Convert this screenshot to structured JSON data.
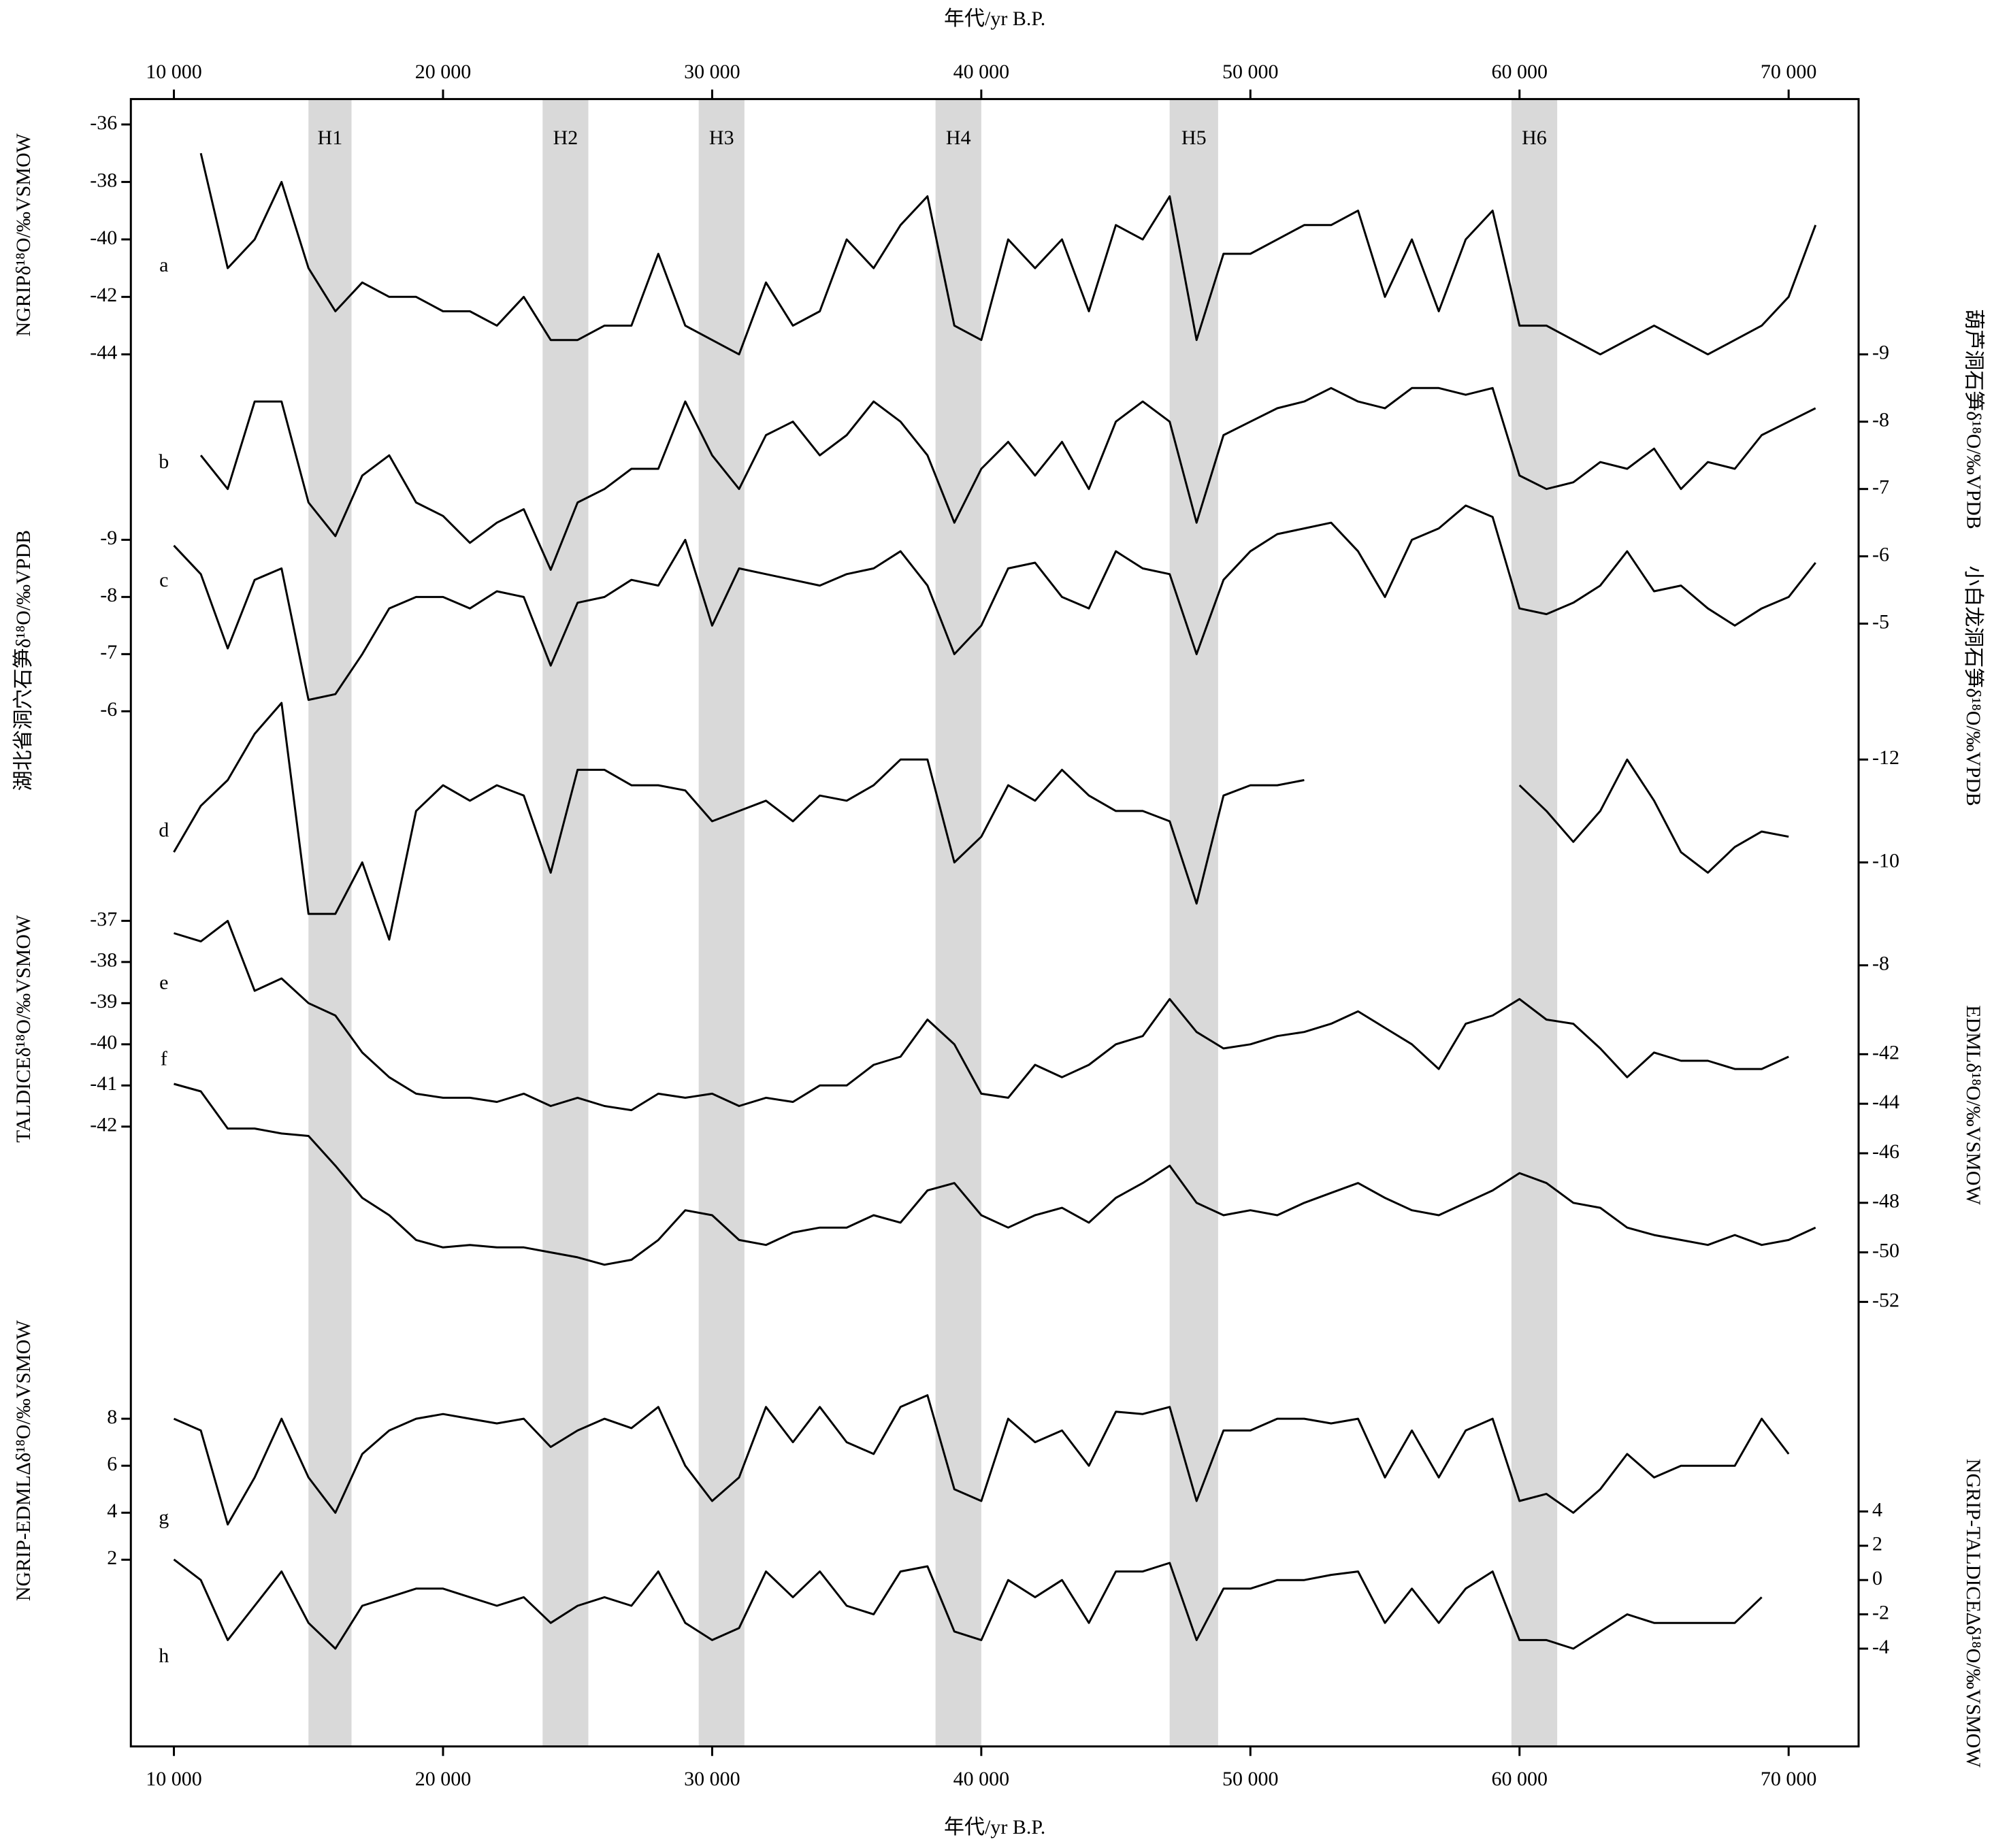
{
  "chart_data": {
    "type": "line",
    "x_label": "年代/yr B.P.",
    "xlim": [
      8400,
      72600
    ],
    "xticks": [
      {
        "value": 10000,
        "label": "10 000"
      },
      {
        "value": 20000,
        "label": "20 000"
      },
      {
        "value": 30000,
        "label": "30 000"
      },
      {
        "value": 40000,
        "label": "40 000"
      },
      {
        "value": 50000,
        "label": "50 000"
      },
      {
        "value": 60000,
        "label": "60 000"
      },
      {
        "value": 70000,
        "label": "70 000"
      }
    ],
    "x": [
      10000,
      11000,
      12000,
      13000,
      14000,
      15000,
      16000,
      17000,
      18000,
      19000,
      20000,
      21000,
      22000,
      23000,
      24000,
      25000,
      26000,
      27000,
      28000,
      29000,
      30000,
      31000,
      32000,
      33000,
      34000,
      35000,
      36000,
      37000,
      38000,
      39000,
      40000,
      41000,
      42000,
      43000,
      44000,
      45000,
      46000,
      47000,
      48000,
      49000,
      50000,
      51000,
      52000,
      53000,
      54000,
      55000,
      56000,
      57000,
      58000,
      59000,
      60000,
      61000,
      62000,
      63000,
      64000,
      65000,
      66000,
      67000,
      68000,
      69000,
      70000,
      71000
    ],
    "events": [
      {
        "label": "H1",
        "start": 15000,
        "end": 16600
      },
      {
        "label": "H2",
        "start": 23700,
        "end": 25400
      },
      {
        "label": "H3",
        "start": 29500,
        "end": 31200
      },
      {
        "label": "H4",
        "start": 38300,
        "end": 40000
      },
      {
        "label": "H5",
        "start": 47000,
        "end": 48800
      },
      {
        "label": "H6",
        "start": 59700,
        "end": 61400
      }
    ],
    "event_color": "#d9d9d9",
    "panels": [
      {
        "label": "a",
        "axis_label": "NGRIPδ¹⁸O/‰VSMOW",
        "side": "left",
        "color": "#000000",
        "ylim": [
          -44,
          -36
        ],
        "yticks": [
          -36,
          -38,
          -40,
          -42,
          -44
        ],
        "values": [
          null,
          -37,
          -41,
          -40,
          -38,
          -41,
          -42.5,
          -41.5,
          -42,
          -42,
          -42.5,
          -42.5,
          -43,
          -42,
          -43.5,
          -43.5,
          -43,
          -43,
          -40.5,
          -43,
          -43.5,
          -44,
          -41.5,
          -43,
          -42.5,
          -40,
          -41,
          -39.5,
          -38.5,
          -43,
          -43.5,
          -40,
          -41,
          -40,
          -42.5,
          -39.5,
          -40,
          -38.5,
          -43.5,
          -40.5,
          -40.5,
          -40,
          -39.5,
          -39.5,
          -39,
          -42,
          -40,
          -42.5,
          -40,
          -39,
          -43,
          -43,
          -43.5,
          -44,
          -43.5,
          -43,
          -43.5,
          -44,
          -43.5,
          -43,
          -42,
          -39.5
        ]
      },
      {
        "label": "b",
        "axis_label": "葫芦洞石笋δ¹⁸O/‰VPDB",
        "side": "right",
        "color": "#000000",
        "ylim": [
          -5,
          -9
        ],
        "yticks": [
          -9,
          -8,
          -7,
          -6,
          -5
        ],
        "values": [
          null,
          -7.5,
          -7.0,
          -8.3,
          -8.3,
          -6.8,
          -6.3,
          -7.2,
          -7.5,
          -6.8,
          -6.6,
          -6.2,
          -6.5,
          -6.7,
          -5.8,
          -6.8,
          -7.0,
          -7.3,
          -7.3,
          -8.3,
          -7.5,
          -7.0,
          -7.8,
          -8.0,
          -7.5,
          -7.8,
          -8.3,
          -8.0,
          -7.5,
          -6.5,
          -7.3,
          -7.7,
          -7.2,
          -7.7,
          -7.0,
          -8.0,
          -8.3,
          -8.0,
          -6.5,
          -7.8,
          -8.0,
          -8.2,
          -8.3,
          -8.5,
          -8.3,
          -8.2,
          -8.5,
          -8.5,
          -8.4,
          -8.5,
          -7.2,
          -7.0,
          -7.1,
          -7.4,
          -7.3,
          -7.6,
          -7.0,
          -7.4,
          -7.3,
          -7.8,
          -8.0,
          -8.2
        ]
      },
      {
        "label": "c",
        "axis_label": "湖北省洞穴石笋δ¹⁸O/‰VPDB",
        "side": "left",
        "color": "#000000",
        "ylim": [
          -6,
          -9
        ],
        "yticks": [
          -9,
          -8,
          -7,
          -6
        ],
        "values": [
          -8.9,
          -8.4,
          -7.1,
          -8.3,
          -8.5,
          -6.2,
          -6.3,
          -7.0,
          -7.8,
          -8.0,
          -8.0,
          -7.8,
          -8.1,
          -8.0,
          -6.8,
          -7.9,
          -8.0,
          -8.3,
          -8.2,
          -9.0,
          -7.5,
          -8.5,
          -8.4,
          -8.3,
          -8.2,
          -8.4,
          -8.5,
          -8.8,
          -8.2,
          -7.0,
          -7.5,
          -8.5,
          -8.6,
          -8.0,
          -7.8,
          -8.8,
          -8.5,
          -8.4,
          -7.0,
          -8.3,
          -8.8,
          -9.1,
          -9.2,
          -9.3,
          -8.8,
          -8.0,
          -9.0,
          -9.2,
          -9.6,
          -9.4,
          -7.8,
          -7.7,
          -7.9,
          -8.2,
          -8.8,
          -8.1,
          -8.2,
          -7.8,
          -7.5,
          -7.8,
          -8.0,
          -8.6
        ]
      },
      {
        "label": "d",
        "axis_label": "小白龙洞石笋δ¹⁸O/‰VPDB",
        "side": "right",
        "color": "#000000",
        "ylim": [
          -8,
          -12
        ],
        "yticks": [
          -12,
          -10,
          -8
        ],
        "values": [
          -10.2,
          -11.1,
          -11.6,
          -12.5,
          -13.1,
          -9.0,
          -9.0,
          -10.0,
          -8.5,
          -11.0,
          -11.5,
          -11.2,
          -11.5,
          -11.3,
          -9.8,
          -11.8,
          -11.8,
          -11.5,
          -11.5,
          -11.4,
          -10.8,
          -11.0,
          -11.2,
          -10.8,
          -11.3,
          -11.2,
          -11.5,
          -12.0,
          -12.0,
          -10.0,
          -10.5,
          -11.5,
          -11.2,
          -11.8,
          -11.3,
          -11.0,
          -11.0,
          -10.8,
          -9.2,
          -11.3,
          -11.5,
          -11.5,
          -11.6,
          null,
          null,
          null,
          null,
          null,
          null,
          null,
          -11.5,
          -11.0,
          -10.4,
          -11.0,
          -12.0,
          -11.2,
          -10.2,
          -9.8,
          -10.3,
          -10.6,
          -10.5,
          null
        ]
      },
      {
        "label": "e",
        "axis_label": "TALDICEδ¹⁸O/‰VSMOW",
        "side": "left",
        "color": "#000000",
        "ylim": [
          -42,
          -37
        ],
        "yticks": [
          -37,
          -38,
          -39,
          -40,
          -41,
          -42
        ],
        "values": [
          -37.3,
          -37.5,
          -37.0,
          -38.7,
          -38.4,
          -39.0,
          -39.3,
          -40.2,
          -40.8,
          -41.2,
          -41.3,
          -41.3,
          -41.4,
          -41.2,
          -41.5,
          -41.3,
          -41.5,
          -41.6,
          -41.2,
          -41.3,
          -41.2,
          -41.5,
          -41.3,
          -41.4,
          -41.0,
          -41.0,
          -40.5,
          -40.3,
          -39.4,
          -40.0,
          -41.2,
          -41.3,
          -40.5,
          -40.8,
          -40.5,
          -40.0,
          -39.8,
          -38.9,
          -39.7,
          -40.1,
          -40.0,
          -39.8,
          -39.7,
          -39.5,
          -39.2,
          -39.6,
          -40.0,
          -40.6,
          -39.5,
          -39.3,
          -38.9,
          -39.4,
          -39.5,
          -40.1,
          -40.8,
          -40.2,
          -40.4,
          -40.4,
          -40.6,
          -40.6,
          -40.3,
          null
        ]
      },
      {
        "label": "f",
        "axis_label": "EDMLδ¹⁸O/‰VSMOW",
        "side": "right",
        "color": "#000000",
        "ylim": [
          -52,
          -42
        ],
        "yticks": [
          -42,
          -44,
          -46,
          -48,
          -50,
          -52
        ],
        "values": [
          -43.2,
          -43.5,
          -45.0,
          -45.0,
          -45.2,
          -45.3,
          -46.5,
          -47.8,
          -48.5,
          -49.5,
          -49.8,
          -49.7,
          -49.8,
          -49.8,
          -50.0,
          -50.2,
          -50.5,
          -50.3,
          -49.5,
          -48.3,
          -48.5,
          -49.5,
          -49.7,
          -49.2,
          -49.0,
          -49.0,
          -48.5,
          -48.8,
          -47.5,
          -47.2,
          -48.5,
          -49.0,
          -48.5,
          -48.2,
          -48.8,
          -47.8,
          -47.2,
          -46.5,
          -48.0,
          -48.5,
          -48.3,
          -48.5,
          -48.0,
          -47.6,
          -47.2,
          -47.8,
          -48.3,
          -48.5,
          -48.0,
          -47.5,
          -46.8,
          -47.2,
          -48.0,
          -48.2,
          -49.0,
          -49.3,
          -49.5,
          -49.7,
          -49.3,
          -49.7,
          -49.5,
          -49.0
        ]
      },
      {
        "label": "g",
        "axis_label": "NGRIP-EDMLΔδ¹⁸O/‰VSMOW",
        "side": "left",
        "color": "#000000",
        "ylim": [
          2,
          8
        ],
        "yticks": [
          8,
          6,
          4,
          2
        ],
        "values": [
          8.0,
          7.5,
          3.5,
          5.5,
          8.0,
          5.5,
          4.0,
          6.5,
          7.5,
          8.0,
          8.2,
          8.0,
          7.8,
          8.0,
          6.8,
          7.5,
          8.0,
          7.6,
          8.5,
          6.0,
          4.5,
          5.5,
          8.5,
          7.0,
          8.5,
          7.0,
          6.5,
          8.5,
          9.0,
          5.0,
          4.5,
          8.0,
          7.0,
          7.5,
          6.0,
          8.3,
          8.2,
          8.5,
          4.5,
          7.5,
          7.5,
          8.0,
          8.0,
          7.8,
          8.0,
          5.5,
          7.5,
          5.5,
          7.5,
          8.0,
          4.5,
          4.8,
          4.0,
          5.0,
          6.5,
          5.5,
          6.0,
          6.0,
          6.0,
          8.0,
          6.5,
          null
        ]
      },
      {
        "label": "h",
        "axis_label": "NGRIP-TALDICEΔδ¹⁸O/‰VSMOW",
        "side": "right",
        "color": "#000000",
        "ylim": [
          -4,
          4
        ],
        "yticks": [
          4,
          2,
          0,
          -2,
          -4
        ],
        "values": [
          1.2,
          0,
          -3.5,
          -1.5,
          0.5,
          -2.5,
          -4.0,
          -1.5,
          -1.0,
          -0.5,
          -0.5,
          -1.0,
          -1.5,
          -1.0,
          -2.5,
          -1.5,
          -1.0,
          -1.5,
          0.5,
          -2.5,
          -3.5,
          -2.8,
          0.5,
          -1.0,
          0.5,
          -1.5,
          -2.0,
          0.5,
          0.8,
          -3.0,
          -3.5,
          0,
          -1.0,
          0,
          -2.5,
          0.5,
          0.5,
          1.0,
          -3.5,
          -0.5,
          -0.5,
          0,
          0,
          0.3,
          0.5,
          -2.5,
          -0.5,
          -2.5,
          -0.5,
          0.5,
          -3.5,
          -3.5,
          -4.0,
          -3.0,
          -2.0,
          -2.5,
          -2.5,
          -2.5,
          -2.5,
          -1.0,
          null,
          null
        ]
      }
    ]
  }
}
